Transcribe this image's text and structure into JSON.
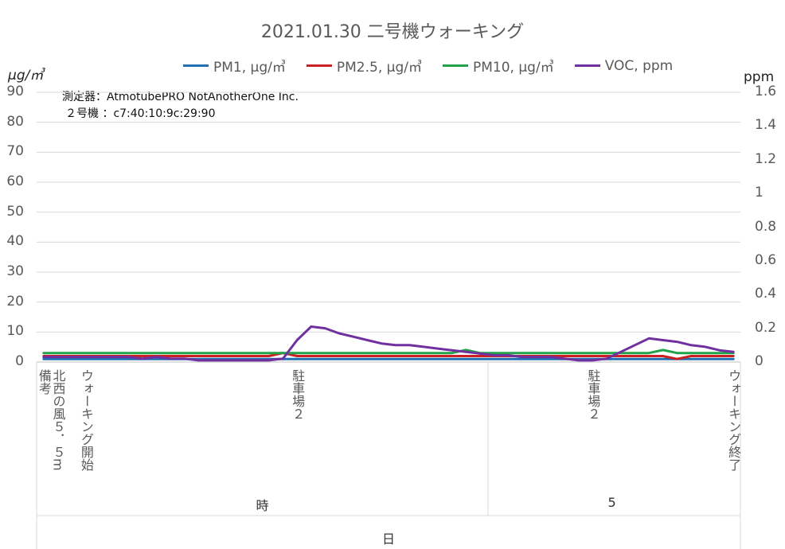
{
  "chart_data": {
    "type": "line",
    "title": "2021.01.30 二号機ウォーキング",
    "y_left_label": "μg/㎥",
    "y_right_label": "ppm",
    "ylim_left": [
      0,
      90
    ],
    "ylim_right": [
      0,
      1.6
    ],
    "yticks_left": [
      "0",
      "10",
      "20",
      "30",
      "40",
      "50",
      "60",
      "70",
      "80",
      "90"
    ],
    "yticks_right": [
      "0",
      "0.2",
      "0.4",
      "0.6",
      "0.8",
      "1",
      "1.2",
      "1.4",
      "1.6"
    ],
    "grid": true,
    "legend_position": "top",
    "note_lines": [
      "測定器：AtmotubePRO NotAnotherOne Inc.",
      "２号機 ：c7:40:10:9c:29:90"
    ],
    "x_count": 50,
    "series": [
      {
        "name": "PM1, μg/㎥",
        "axis": "left",
        "color": "#1f6fb4",
        "values": [
          1,
          1,
          1,
          1,
          1,
          1,
          1,
          1,
          1,
          1,
          1,
          1,
          1,
          1,
          1,
          1,
          1,
          1,
          1,
          1,
          1,
          1,
          1,
          1,
          1,
          1,
          1,
          1,
          1,
          1,
          1,
          1,
          1,
          1,
          1,
          1,
          1,
          1,
          1,
          1,
          1,
          1,
          1,
          1,
          1,
          1,
          1,
          1,
          1,
          1
        ]
      },
      {
        "name": "PM2.5, μg/㎥",
        "axis": "left",
        "color": "#cc1f1f",
        "values": [
          2,
          2,
          2,
          2,
          2,
          2,
          2,
          2,
          2,
          2,
          2,
          2,
          2,
          2,
          2,
          2,
          2,
          3,
          2,
          2,
          2,
          2,
          2,
          2,
          2,
          2,
          2,
          2,
          2,
          2,
          2,
          2,
          2,
          2,
          2,
          2,
          2,
          2,
          2,
          2,
          2,
          2,
          2,
          2,
          2,
          1,
          2,
          2,
          2,
          2
        ]
      },
      {
        "name": "PM10, μg/㎥",
        "axis": "left",
        "color": "#22a34a",
        "values": [
          3,
          3,
          3,
          3,
          3,
          3,
          3,
          3,
          3,
          3,
          3,
          3,
          3,
          3,
          3,
          3,
          3,
          3,
          3,
          3,
          3,
          3,
          3,
          3,
          3,
          3,
          3,
          3,
          3,
          3,
          4,
          3,
          3,
          3,
          3,
          3,
          3,
          3,
          3,
          3,
          3,
          3,
          3,
          3,
          4,
          3,
          3,
          3,
          3,
          3
        ]
      },
      {
        "name": "VOC, ppm",
        "axis": "right",
        "color": "#7030a0",
        "values": [
          0.03,
          0.03,
          0.03,
          0.03,
          0.03,
          0.03,
          0.03,
          0.02,
          0.03,
          0.02,
          0.02,
          0.01,
          0.01,
          0.01,
          0.01,
          0.01,
          0.01,
          0.02,
          0.13,
          0.21,
          0.2,
          0.17,
          0.15,
          0.13,
          0.11,
          0.1,
          0.1,
          0.09,
          0.08,
          0.07,
          0.06,
          0.05,
          0.04,
          0.04,
          0.03,
          0.03,
          0.03,
          0.02,
          0.01,
          0.01,
          0.02,
          0.06,
          0.1,
          0.14,
          0.13,
          0.12,
          0.1,
          0.09,
          0.07,
          0.06
        ]
      }
    ],
    "category_labels": [
      {
        "index": 0,
        "text": "備考"
      },
      {
        "index": 1,
        "text": "北西の風５．５m"
      },
      {
        "index": 3,
        "text": "ウォーキング開始"
      },
      {
        "index": 18,
        "text": "駐車場２"
      },
      {
        "index": 39,
        "text": "駐車場２"
      },
      {
        "index": 49,
        "text": "ウォーキング終了"
      }
    ],
    "level2_labels": [
      {
        "text": "時",
        "group": 0
      },
      {
        "text": "5",
        "group": 1
      }
    ],
    "level3_label": "日"
  }
}
